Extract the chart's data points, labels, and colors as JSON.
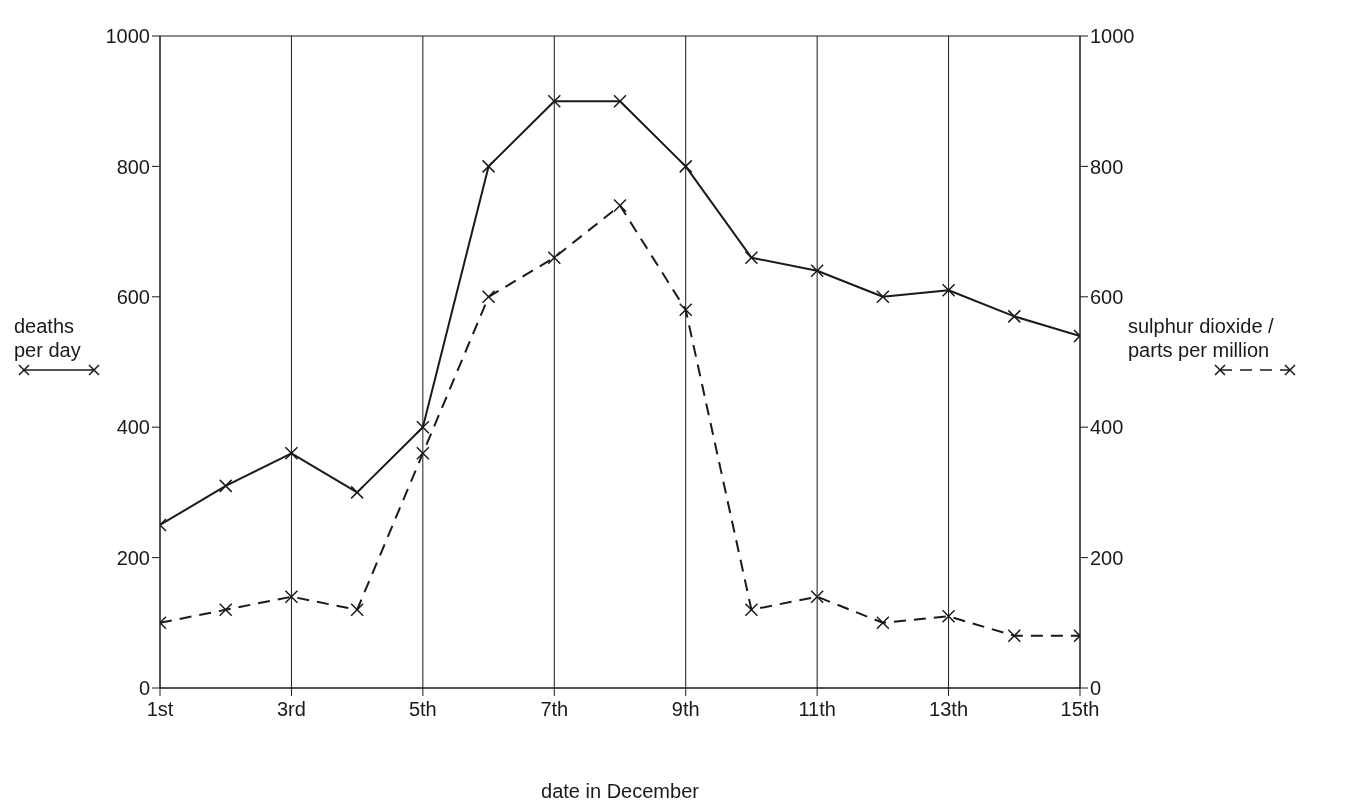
{
  "chart_data": {
    "type": "line",
    "xlabel": "date in December",
    "ylabel": "deaths per day",
    "y2label": "sulphur dioxide / parts per million",
    "x": [
      1,
      2,
      3,
      4,
      5,
      6,
      7,
      8,
      9,
      10,
      11,
      12,
      13,
      14,
      15
    ],
    "series": [
      {
        "color": "#1a1a1a",
        "line_style": "solid",
        "values": [
          250,
          310,
          360,
          300,
          400,
          800,
          900,
          900,
          800,
          660,
          640,
          600,
          610,
          570,
          540
        ]
      },
      {
        "color": "#1a1a1a",
        "line_style": "dashed",
        "axis": "y2",
        "values": [
          100,
          120,
          140,
          120,
          360,
          600,
          660,
          740,
          580,
          120,
          140,
          100,
          110,
          80,
          80
        ]
      }
    ],
    "xlim": [
      1,
      15
    ],
    "xticks": [
      {
        "value": 1,
        "label": "1st"
      },
      {
        "value": 3,
        "label": "3rd"
      },
      {
        "value": 5,
        "label": "5th"
      },
      {
        "value": 7,
        "label": "7th"
      },
      {
        "value": 9,
        "label": "9th"
      },
      {
        "value": 11,
        "label": "11th"
      },
      {
        "value": 13,
        "label": "13th"
      },
      {
        "value": 15,
        "label": "15th"
      }
    ],
    "ylim": [
      0,
      1000
    ],
    "yticks": [
      0,
      200,
      400,
      600,
      800,
      1000
    ],
    "y2lim": [
      0,
      1000
    ],
    "y2ticks": [
      0,
      200,
      400,
      600,
      800,
      1000
    ],
    "grid": true,
    "marker": "cross"
  }
}
